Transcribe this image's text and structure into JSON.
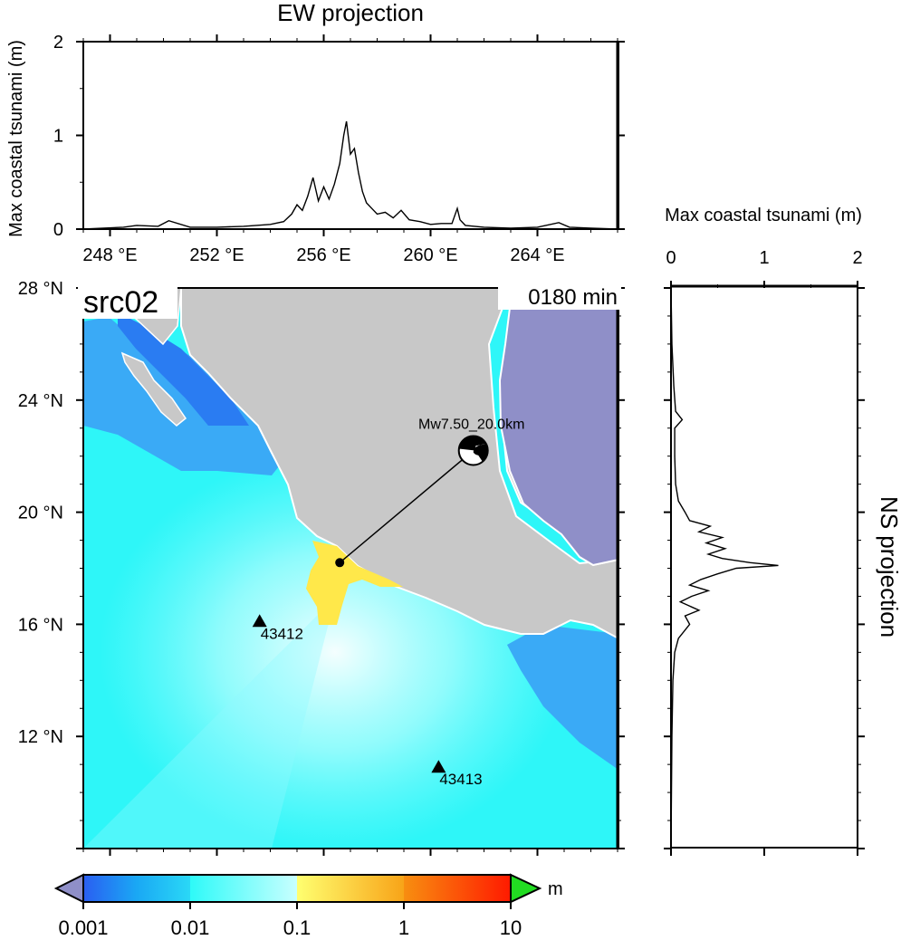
{
  "ew_panel": {
    "title": "EW projection",
    "ylabel": "Max coastal tsunami (m)",
    "y_ticks": [
      "0",
      "1",
      "2"
    ],
    "x_ticks": [
      "248 °E",
      "252 °E",
      "256 °E",
      "260 °E",
      "264 °E"
    ]
  },
  "ns_panel": {
    "title": "NS projection",
    "xlabel": "Max coastal tsunami (m)",
    "x_ticks": [
      "0",
      "1",
      "2"
    ]
  },
  "map": {
    "source_label": "src02",
    "time_label": "0180 min",
    "lat_ticks": [
      "28 °N",
      "24 °N",
      "20 °N",
      "16 °N",
      "12 °N"
    ],
    "event_label": "Mw7.50_20.0km",
    "stations": [
      {
        "id": "43412"
      },
      {
        "id": "43413"
      }
    ],
    "colors": {
      "land": "#c8c8c8",
      "gulf_water": "#8f8fc8",
      "sea_low": "#2ef6f8",
      "sea_mid": "#9efcff",
      "sea_deep": "#3aaaf6",
      "sea_very_low": "#2a7cf2",
      "wave_high": "#ffe84a"
    }
  },
  "colorbar": {
    "unit": "m",
    "tick_labels": [
      "0.001",
      "0.01",
      "0.1",
      "1",
      "10"
    ]
  },
  "chart_data": [
    {
      "type": "line",
      "title": "EW projection",
      "xlabel": "",
      "ylabel": "Max coastal tsunami (m)",
      "x_unit": "°E",
      "xlim": [
        247,
        267
      ],
      "ylim": [
        0,
        2
      ],
      "x": [
        247,
        248.5,
        249,
        249.8,
        250.2,
        251,
        252,
        253,
        254,
        254.5,
        254.8,
        255,
        255.2,
        255.4,
        255.6,
        255.8,
        256.0,
        256.2,
        256.4,
        256.6,
        256.75,
        256.85,
        257.0,
        257.15,
        257.3,
        257.45,
        257.6,
        257.8,
        258.0,
        258.3,
        258.6,
        258.9,
        259.2,
        259.6,
        260.0,
        260.4,
        260.8,
        261.0,
        261.1,
        261.3,
        262,
        263,
        264,
        264.8,
        265.2,
        266,
        267
      ],
      "y": [
        0,
        0.02,
        0.04,
        0.03,
        0.09,
        0.02,
        0.02,
        0.03,
        0.05,
        0.08,
        0.16,
        0.26,
        0.2,
        0.35,
        0.55,
        0.3,
        0.45,
        0.32,
        0.48,
        0.7,
        1.0,
        1.15,
        0.8,
        0.86,
        0.6,
        0.4,
        0.28,
        0.22,
        0.16,
        0.18,
        0.12,
        0.2,
        0.1,
        0.08,
        0.05,
        0.06,
        0.06,
        0.22,
        0.1,
        0.04,
        0.02,
        0.01,
        0.02,
        0.07,
        0.02,
        0.01,
        0
      ]
    },
    {
      "type": "line",
      "title": "NS projection",
      "xlabel": "Max coastal tsunami (m)",
      "ylabel": "",
      "y_unit": "°N",
      "xlim": [
        0,
        2
      ],
      "ylim": [
        8.0,
        28.0
      ],
      "y": [
        8.0,
        12,
        14,
        15,
        15.5,
        16.0,
        16.3,
        16.5,
        16.8,
        17.0,
        17.2,
        17.4,
        17.6,
        17.8,
        18.0,
        18.1,
        18.2,
        18.35,
        18.5,
        18.7,
        18.9,
        19.1,
        19.3,
        19.5,
        19.7,
        20.0,
        20.4,
        21.0,
        22.0,
        23.0,
        23.3,
        23.6,
        24.5,
        26,
        28.0
      ],
      "x": [
        0,
        0.01,
        0.02,
        0.04,
        0.08,
        0.2,
        0.15,
        0.3,
        0.1,
        0.22,
        0.4,
        0.2,
        0.32,
        0.5,
        0.7,
        1.15,
        0.85,
        0.55,
        0.4,
        0.58,
        0.38,
        0.55,
        0.3,
        0.42,
        0.2,
        0.15,
        0.08,
        0.05,
        0.04,
        0.04,
        0.12,
        0.05,
        0.03,
        0.01,
        0
      ]
    },
    {
      "type": "scatter",
      "title": "",
      "xlabel": "",
      "ylabel": "",
      "x_unit": "°E",
      "y_unit": "°N",
      "xlim": [
        247,
        267
      ],
      "ylim": [
        8.0,
        28.0
      ],
      "epicenter": {
        "lon": 256.6,
        "lat": 18.2
      },
      "beachball": {
        "lon": 261.6,
        "lat": 22.2
      },
      "stations": [
        {
          "id": "43412",
          "lon": 253.6,
          "lat": 16.1
        },
        {
          "id": "43413",
          "lon": 260.3,
          "lat": 10.9
        }
      ]
    }
  ]
}
